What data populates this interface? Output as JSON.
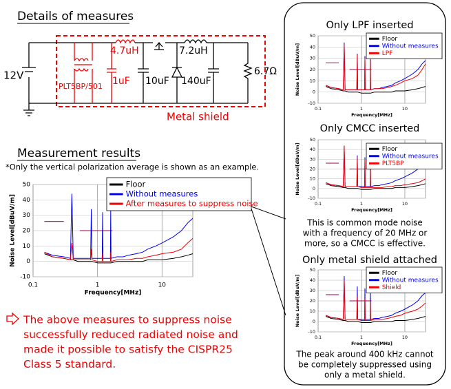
{
  "header": {
    "circuit_title": "Details of measures",
    "results_title": "Measurement results",
    "results_note": "*Only the vertical polarization average is shown as an example."
  },
  "circuit": {
    "source": "12V",
    "cmcc": "PLT5BP/501",
    "l1": "4.7uH",
    "c1": "1uF",
    "c2": "10uF",
    "l2": "7.2uH",
    "c3": "140uF",
    "load": "6.7Ω",
    "shield": "Metal shield"
  },
  "conclusion": [
    "The above measures to suppress noise",
    "successfully reduced radiated noise and",
    "made it possible to satisfy the CISPR25",
    "Class 5 standard."
  ],
  "chart_data": [
    {
      "type": "line",
      "x_label": "Frequency[MHz]",
      "y_label": "Noise Level[dBuV/m]",
      "log_x": true,
      "grid": true,
      "xlim": [
        0.1,
        30
      ],
      "xticks": [
        0.1,
        1,
        10
      ],
      "ylim": [
        -10,
        50
      ],
      "yticks": [
        -10,
        0,
        10,
        20,
        30,
        40,
        50
      ],
      "x": [
        0.15,
        0.2,
        0.3,
        0.38,
        0.4,
        0.42,
        0.5,
        0.6,
        0.78,
        0.8,
        0.82,
        1,
        1.18,
        1.2,
        1.22,
        1.5,
        1.58,
        1.6,
        1.62,
        2,
        2.5,
        3,
        4,
        5,
        6,
        8,
        10,
        15,
        20,
        25,
        30
      ],
      "series": [
        {
          "name": "Floor",
          "color": "#000000",
          "values": [
            5,
            3,
            2,
            1,
            1,
            1,
            0,
            0,
            0,
            0,
            0,
            -1,
            -1,
            -1,
            -1,
            -1,
            -1,
            -1,
            -1,
            0,
            0,
            0,
            0,
            0,
            1,
            1,
            1,
            2,
            3,
            4,
            5
          ]
        },
        {
          "name": "Without measures",
          "color": "#0000ee",
          "values": [
            6,
            4,
            3,
            2,
            44,
            2,
            2,
            2,
            2,
            34,
            2,
            2,
            2,
            32,
            2,
            2,
            2,
            33,
            2,
            3,
            3,
            4,
            5,
            6,
            8,
            10,
            12,
            16,
            20,
            25,
            28
          ]
        },
        {
          "name": "After measures to suppress noise",
          "color": "#ee0000",
          "values": [
            6,
            3,
            2,
            1,
            12,
            1,
            1,
            1,
            1,
            8,
            1,
            0,
            0,
            6,
            0,
            0,
            0,
            6,
            0,
            1,
            1,
            1,
            2,
            2,
            3,
            4,
            5,
            6,
            8,
            12,
            15
          ]
        }
      ],
      "limit_lines": [
        {
          "x": [
            0.15,
            0.3
          ],
          "value": 26
        },
        {
          "x": [
            0.53,
            1.7
          ],
          "value": 20
        }
      ]
    },
    {
      "type": "line",
      "title": "Only LPF inserted",
      "x_label": "Frequency[MHz]",
      "y_label": "Noise Level[dBuV/m]",
      "log_x": true,
      "grid": true,
      "xlim": [
        0.1,
        30
      ],
      "xticks": [
        0.1,
        1,
        10
      ],
      "ylim": [
        -10,
        50
      ],
      "yticks": [
        -10,
        0,
        10,
        20,
        30,
        40,
        50
      ],
      "x": [
        0.15,
        0.2,
        0.3,
        0.38,
        0.4,
        0.42,
        0.5,
        0.6,
        0.78,
        0.8,
        0.82,
        1,
        1.18,
        1.2,
        1.22,
        1.5,
        1.58,
        1.6,
        1.62,
        2,
        2.5,
        3,
        4,
        5,
        6,
        8,
        10,
        15,
        20,
        25,
        30
      ],
      "series": [
        {
          "name": "Floor",
          "color": "#000000",
          "values": [
            5,
            3,
            2,
            1,
            1,
            1,
            0,
            0,
            0,
            0,
            0,
            -1,
            -1,
            -1,
            -1,
            -1,
            -1,
            -1,
            -1,
            0,
            0,
            0,
            0,
            0,
            1,
            1,
            1,
            2,
            3,
            4,
            5
          ]
        },
        {
          "name": "Without measures",
          "color": "#0000ee",
          "values": [
            6,
            4,
            3,
            2,
            44,
            2,
            2,
            2,
            2,
            34,
            2,
            2,
            2,
            32,
            2,
            2,
            2,
            33,
            2,
            3,
            3,
            4,
            5,
            6,
            8,
            10,
            12,
            16,
            20,
            25,
            28
          ]
        },
        {
          "name": "LPF",
          "color": "#ee0000",
          "values": [
            6,
            4,
            3,
            2,
            42,
            2,
            2,
            2,
            2,
            33,
            2,
            2,
            2,
            30,
            2,
            2,
            2,
            30,
            2,
            3,
            3,
            3,
            4,
            5,
            6,
            8,
            10,
            12,
            15,
            20,
            25
          ]
        }
      ],
      "limit_lines": [
        {
          "x": [
            0.15,
            0.3
          ],
          "value": 26
        },
        {
          "x": [
            0.53,
            1.7
          ],
          "value": 20
        }
      ]
    },
    {
      "type": "line",
      "title": "Only CMCC inserted",
      "x_label": "Frequency[MHz]",
      "y_label": "Noise Level[dBuV/m]",
      "log_x": true,
      "grid": true,
      "xlim": [
        0.1,
        30
      ],
      "xticks": [
        0.1,
        1,
        10
      ],
      "ylim": [
        -10,
        50
      ],
      "yticks": [
        -10,
        0,
        10,
        20,
        30,
        40,
        50
      ],
      "note": [
        "This is common mode noise",
        "with a frequency of 20 MHz or",
        "more, so a CMCC is effective."
      ],
      "x": [
        0.15,
        0.2,
        0.3,
        0.38,
        0.4,
        0.42,
        0.5,
        0.6,
        0.78,
        0.8,
        0.82,
        1,
        1.18,
        1.2,
        1.22,
        1.5,
        1.58,
        1.6,
        1.62,
        2,
        2.5,
        3,
        4,
        5,
        6,
        8,
        10,
        15,
        20,
        25,
        30
      ],
      "series": [
        {
          "name": "Floor",
          "color": "#000000",
          "values": [
            5,
            3,
            2,
            1,
            1,
            1,
            0,
            0,
            0,
            0,
            0,
            -1,
            -1,
            -1,
            -1,
            -1,
            -1,
            -1,
            -1,
            0,
            0,
            0,
            0,
            0,
            1,
            1,
            1,
            2,
            3,
            4,
            5
          ]
        },
        {
          "name": "Without measures",
          "color": "#0000ee",
          "values": [
            6,
            4,
            3,
            2,
            44,
            2,
            2,
            2,
            2,
            34,
            2,
            2,
            2,
            32,
            2,
            2,
            2,
            33,
            2,
            3,
            3,
            4,
            5,
            6,
            8,
            10,
            12,
            16,
            20,
            25,
            28
          ]
        },
        {
          "name": "PLT5BP",
          "color": "#ee0000",
          "values": [
            6,
            4,
            3,
            2,
            44,
            2,
            2,
            2,
            2,
            32,
            2,
            1,
            1,
            30,
            1,
            1,
            1,
            28,
            1,
            1,
            1,
            1,
            2,
            2,
            3,
            3,
            4,
            5,
            6,
            8,
            10
          ]
        }
      ],
      "limit_lines": [
        {
          "x": [
            0.15,
            0.3
          ],
          "value": 26
        },
        {
          "x": [
            0.53,
            1.7
          ],
          "value": 20
        }
      ]
    },
    {
      "type": "line",
      "title": "Only metal shield attached",
      "x_label": "Frequency[MHz]",
      "y_label": "Noise Level[dBuV/m]",
      "log_x": true,
      "grid": true,
      "xlim": [
        0.1,
        30
      ],
      "xticks": [
        0.1,
        1,
        10
      ],
      "ylim": [
        -10,
        50
      ],
      "yticks": [
        -10,
        0,
        10,
        20,
        30,
        40,
        50
      ],
      "note": [
        "The peak around 400 kHz cannot",
        "be completely suppressed using",
        "only a metal shield."
      ],
      "x": [
        0.15,
        0.2,
        0.3,
        0.38,
        0.4,
        0.42,
        0.5,
        0.6,
        0.78,
        0.8,
        0.82,
        1,
        1.18,
        1.2,
        1.22,
        1.5,
        1.58,
        1.6,
        1.62,
        2,
        2.5,
        3,
        4,
        5,
        6,
        8,
        10,
        15,
        20,
        25,
        30
      ],
      "series": [
        {
          "name": "Floor",
          "color": "#000000",
          "values": [
            5,
            3,
            2,
            1,
            1,
            1,
            0,
            0,
            0,
            0,
            0,
            -1,
            -1,
            -1,
            -1,
            -1,
            -1,
            -1,
            -1,
            0,
            0,
            0,
            0,
            0,
            1,
            1,
            1,
            2,
            3,
            4,
            5
          ]
        },
        {
          "name": "Without measures",
          "color": "#0000ee",
          "values": [
            6,
            4,
            3,
            2,
            44,
            2,
            2,
            2,
            2,
            34,
            2,
            2,
            2,
            32,
            2,
            2,
            2,
            33,
            2,
            3,
            3,
            4,
            5,
            6,
            8,
            10,
            12,
            16,
            20,
            25,
            28
          ]
        },
        {
          "name": "Shield",
          "color": "#ee0000",
          "values": [
            6,
            4,
            3,
            2,
            40,
            2,
            2,
            2,
            2,
            25,
            2,
            1,
            1,
            22,
            1,
            1,
            1,
            20,
            1,
            2,
            2,
            2,
            3,
            4,
            5,
            6,
            8,
            10,
            12,
            15,
            18
          ]
        }
      ],
      "limit_lines": [
        {
          "x": [
            0.15,
            0.3
          ],
          "value": 26
        },
        {
          "x": [
            0.53,
            1.7
          ],
          "value": 20
        }
      ]
    }
  ]
}
